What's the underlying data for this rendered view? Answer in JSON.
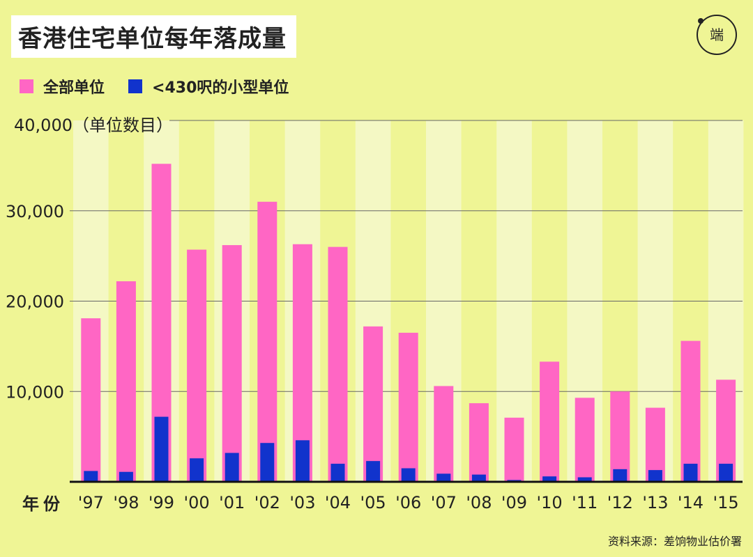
{
  "title": "香港住宅单位每年落成量",
  "logo": {
    "text": "端",
    "icon": "initium-logo"
  },
  "source": "资料来源：差饷物业估价署",
  "chart_data": {
    "type": "bar",
    "title": "香港住宅单位每年落成量",
    "xlabel": "年份",
    "ylabel": "（单位数目）",
    "ylim": [
      0,
      40000
    ],
    "yticks": [
      "10,000",
      "20,000",
      "30,000",
      "40,000"
    ],
    "ytick_values": [
      10000,
      20000,
      30000,
      40000
    ],
    "grid": true,
    "legend_position": "top-left",
    "categories": [
      "'97",
      "'98",
      "'99",
      "'00",
      "'01",
      "'02",
      "'03",
      "'04",
      "'05",
      "'06",
      "'07",
      "'08",
      "'09",
      "'10",
      "'11",
      "'12",
      "'13",
      "'14",
      "'15"
    ],
    "series": [
      {
        "name": "全部单位",
        "color": "#ff66c4",
        "values": [
          18100,
          22200,
          35200,
          25700,
          26200,
          31000,
          26300,
          26000,
          17200,
          16500,
          10600,
          8700,
          7100,
          13300,
          9300,
          10000,
          8200,
          15600,
          11300
        ]
      },
      {
        "name": "<430呎的小型单位",
        "color": "#1133cc",
        "values": [
          1200,
          1100,
          7200,
          2600,
          3200,
          4300,
          4600,
          2000,
          2300,
          1500,
          900,
          800,
          200,
          600,
          500,
          1400,
          1300,
          2000,
          2000
        ]
      }
    ]
  }
}
